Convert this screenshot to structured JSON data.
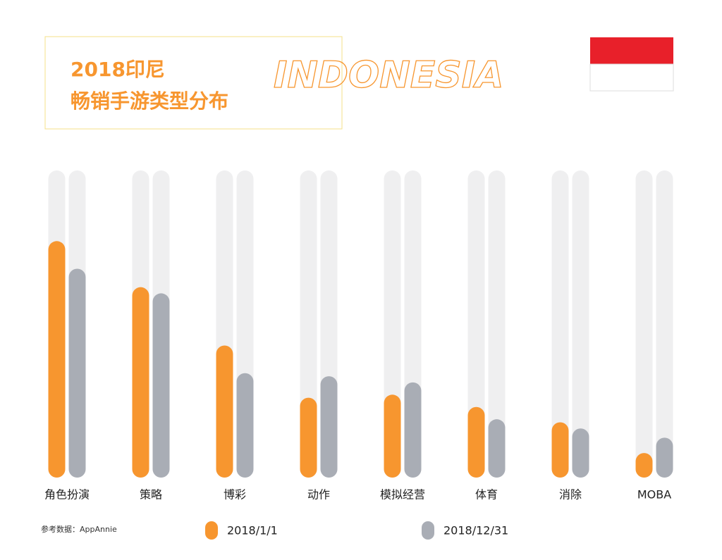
{
  "chart_data": {
    "type": "bar",
    "title_lines": [
      "2018印尼",
      "畅销手游类型分布"
    ],
    "annotation": "INDONESIA",
    "source": "参考数据：AppAnnie",
    "categories": [
      "角色扮演",
      "策略",
      "博彩",
      "动作",
      "模拟经营",
      "体育",
      "消除",
      "MOBA"
    ],
    "series": [
      {
        "name": "2018/1/1",
        "color": "#f7962f",
        "values": [
          77,
          62,
          43,
          26,
          27,
          23,
          18,
          8
        ]
      },
      {
        "name": "2018/12/31",
        "color": "#a9adb5",
        "values": [
          68,
          60,
          34,
          33,
          31,
          19,
          16,
          13
        ]
      }
    ],
    "ylim": [
      0,
      100
    ],
    "legend": "bottom"
  }
}
